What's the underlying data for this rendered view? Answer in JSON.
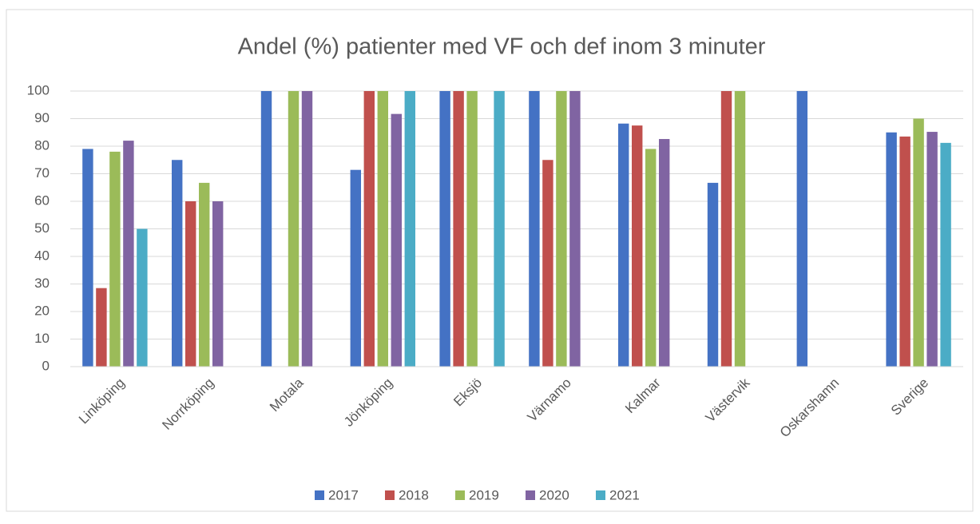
{
  "chart_data": {
    "type": "bar",
    "title": "Andel (%) patienter med VF och def inom 3 minuter",
    "categories": [
      "Linköping",
      "Norrköping",
      "Motala",
      "Jönköping",
      "Eksjö",
      "Värnamo",
      "Kalmar",
      "Västervik",
      "Oskarshamn",
      "Sverige"
    ],
    "series": [
      {
        "name": "2017",
        "color": "#4472c4",
        "values": [
          79,
          75,
          100,
          71.4,
          100,
          100,
          88.2,
          66.7,
          100,
          85
        ]
      },
      {
        "name": "2018",
        "color": "#c0504d",
        "values": [
          28.5,
          60,
          null,
          100,
          100,
          75,
          87.5,
          100,
          null,
          83.5
        ]
      },
      {
        "name": "2019",
        "color": "#9bbb59",
        "values": [
          78,
          66.7,
          100,
          100,
          100,
          100,
          79,
          100,
          null,
          90
        ]
      },
      {
        "name": "2020",
        "color": "#8064a2",
        "values": [
          82,
          60,
          100,
          91.7,
          null,
          100,
          82.6,
          null,
          null,
          85.2
        ]
      },
      {
        "name": "2021",
        "color": "#4bacc6",
        "values": [
          50,
          null,
          null,
          100,
          100,
          null,
          null,
          null,
          null,
          81.2
        ]
      }
    ],
    "ylim": [
      0,
      100
    ],
    "yticks": [
      0,
      10,
      20,
      30,
      40,
      50,
      60,
      70,
      80,
      90,
      100
    ],
    "grid": true,
    "legend": "bottom"
  }
}
